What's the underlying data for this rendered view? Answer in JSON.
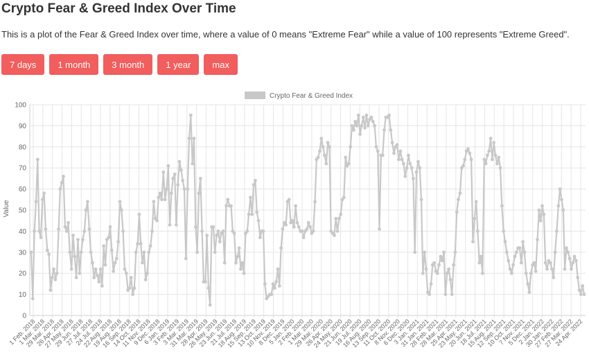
{
  "header": {
    "title": "Crypto Fear & Greed Index Over Time",
    "description": "This is a plot of the Fear & Greed Index over time, where a value of 0 means \"Extreme Fear\" while a value of 100 represents \"Extreme Greed\"."
  },
  "range_buttons": [
    {
      "label": "7 days"
    },
    {
      "label": "1 month"
    },
    {
      "label": "3 month"
    },
    {
      "label": "1 year"
    },
    {
      "label": "max"
    }
  ],
  "colors": {
    "button": "#f25d5d",
    "series": "#c8c8c8",
    "grid": "#e5e5e5"
  },
  "chart_data": {
    "type": "line",
    "title": "",
    "xlabel": "",
    "ylabel": "Value",
    "ylim": [
      0,
      100
    ],
    "yticks": [
      0,
      10,
      20,
      30,
      40,
      50,
      60,
      70,
      80,
      90,
      100
    ],
    "grid": true,
    "legend": "top-center",
    "x_tick_labels": [
      "1 Feb. 2018",
      "1 Mar. 2018",
      "29 Mar. 2018",
      "26 Apr. 2018",
      "27 May. 2018",
      "29 Jun. 2018",
      "27 Jul. 2018",
      "24 Jul. 2018",
      "22 Aug. 2018",
      "19 Aug. 2018",
      "16 Sep. 2018",
      "14 Oct. 2018",
      "11 Nov. 2018",
      "9 Dec. 2018",
      "6 Jan. 2019",
      "3 Feb. 2019",
      "3 Mar. 2019",
      "31 Mar. 2019",
      "28 Apr. 2019",
      "26 May. 2019",
      "23 Jun. 2019",
      "21 Jul. 2019",
      "18 Aug. 2019",
      "15 Sep. 2019",
      "13 Oct. 2019",
      "10 Nov. 2019",
      "8 Dec. 2019",
      "5 Jan. 2020",
      "2 Feb. 2020",
      "1 Mar. 2020",
      "29 Mar. 2020",
      "26 Apr. 2020",
      "24 May. 2020",
      "21 Jun. 2020",
      "19 Jul. 2020",
      "16 Aug. 2020",
      "13 Sep. 2020",
      "11 Oct. 2020",
      "8 Nov. 2020",
      "6 Dec. 2020",
      "3 Jan. 2021",
      "31 Jan. 2021",
      "28 Feb. 2021",
      "28 Mar. 2021",
      "25 Apr. 2021",
      "23 May. 2021",
      "20 Jun. 2021",
      "18 Jul. 2021",
      "15 Aug. 2021",
      "12 Sep. 2021",
      "10 Oct. 2021",
      "7 Nov. 2021",
      "5 Dec. 2021",
      "2 Jan. 2022",
      "30 Jan. 2022",
      "27 Feb. 2022",
      "27 Mar. 2022",
      "24 Apr. 2022"
    ],
    "series": [
      {
        "name": "Crypto Fear & Greed Index",
        "values": [
          30,
          8,
          40,
          54,
          74,
          40,
          37,
          55,
          58,
          41,
          31,
          29,
          12,
          18,
          22,
          17,
          20,
          41,
          60,
          63,
          66,
          42,
          40,
          44,
          30,
          22,
          38,
          28,
          18,
          36,
          20,
          30,
          36,
          40,
          50,
          54,
          41,
          30,
          25,
          18,
          22,
          19,
          16,
          22,
          14,
          33,
          24,
          36,
          37,
          42,
          31,
          21,
          25,
          27,
          35,
          54,
          50,
          40,
          22,
          20,
          12,
          13,
          18,
          10,
          13,
          30,
          34,
          48,
          34,
          25,
          30,
          17,
          20,
          30,
          33,
          40,
          54,
          46,
          45,
          56,
          58,
          55,
          68,
          55,
          60,
          71,
          43,
          58,
          65,
          67,
          43,
          62,
          73,
          69,
          64,
          60,
          27,
          60,
          84,
          95,
          72,
          84,
          42,
          30,
          58,
          65,
          40,
          16,
          16,
          38,
          13,
          5,
          42,
          42,
          30,
          38,
          40,
          35,
          39,
          40,
          25,
          52,
          55,
          52,
          52,
          40,
          39,
          25,
          28,
          32,
          22,
          25,
          20,
          39,
          40,
          48,
          56,
          48,
          62,
          64,
          49,
          45,
          37,
          40,
          40,
          15,
          8,
          9,
          10,
          10,
          15,
          13,
          16,
          22,
          14,
          32,
          41,
          44,
          43,
          54,
          55,
          44,
          45,
          42,
          52,
          44,
          42,
          40,
          40,
          37,
          40,
          41,
          44,
          42,
          39,
          40,
          54,
          74,
          75,
          78,
          84,
          80,
          76,
          72,
          82,
          80,
          40,
          39,
          38,
          46,
          40,
          46,
          48,
          55,
          56,
          75,
          71,
          72,
          80,
          90,
          88,
          92,
          90,
          95,
          86,
          90,
          94,
          89,
          95,
          90,
          93,
          94,
          92,
          90,
          80,
          78,
          41,
          76,
          76,
          88,
          94,
          94,
          95,
          88,
          82,
          77,
          80,
          81,
          74,
          78,
          74,
          72,
          66,
          70,
          76,
          72,
          70,
          65,
          30,
          68,
          73,
          70,
          55,
          20,
          30,
          22,
          11,
          10,
          15,
          24,
          25,
          21,
          20,
          24,
          28,
          26,
          30,
          10,
          20,
          22,
          17,
          10,
          24,
          30,
          49,
          55,
          58,
          70,
          71,
          74,
          78,
          79,
          77,
          74,
          35,
          46,
          54,
          40,
          25,
          28,
          20,
          74,
          72,
          76,
          78,
          84,
          74,
          82,
          76,
          72,
          75,
          70,
          52,
          40,
          35,
          30,
          26,
          22,
          20,
          24,
          28,
          30,
          32,
          32,
          25,
          35,
          30,
          20,
          15,
          11,
          20,
          24,
          25,
          21,
          36,
          50,
          45,
          52,
          48,
          25,
          22,
          26,
          25,
          22,
          18,
          30,
          40,
          52,
          60,
          55,
          50,
          22,
          32,
          30,
          27,
          22,
          25,
          28,
          26,
          18,
          12,
          10,
          14,
          10
        ]
      }
    ]
  }
}
